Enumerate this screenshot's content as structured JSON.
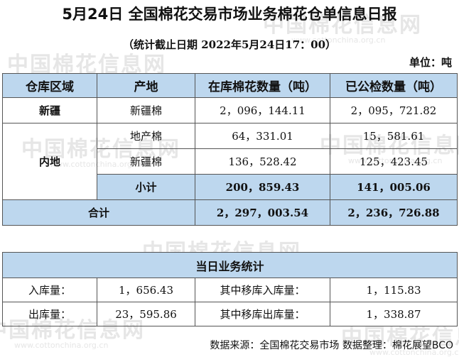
{
  "title": "5月24日 全国棉花交易市场业务棉花仓单信息日报",
  "subtitle": "（统计截止日期 2022年5月24日17：00）",
  "unit": "单位：吨",
  "watermark": {
    "brand": "中国棉花信息网",
    "url": "www.cottonchina.org.cn"
  },
  "table": {
    "headers": [
      "仓库区域",
      "产地",
      "在库棉花数量（吨）",
      "已公检数量（吨）"
    ],
    "xinjiang": {
      "region": "新疆",
      "origin": "新疆棉",
      "stock": "2，096，144.11",
      "inspected": "2，095，721.82"
    },
    "inland": {
      "region": "内地",
      "rows": [
        {
          "origin": "地产棉",
          "stock": "64，331.01",
          "inspected": "15，581.61"
        },
        {
          "origin": "新疆棉",
          "stock": "136，528.42",
          "inspected": "125，423.45"
        }
      ],
      "subtotal_label": "小计",
      "subtotal_stock": "200，859.43",
      "subtotal_inspected": "141，005.06"
    },
    "total": {
      "label": "合计",
      "stock": "2，297，003.54",
      "inspected": "2，236，726.88"
    }
  },
  "daily": {
    "title": "当日业务统计",
    "rows": [
      {
        "label": "入库量：",
        "value": "1，656.43",
        "sub_label": "其中移库入库量：",
        "sub_value": "1，115.83"
      },
      {
        "label": "出库量：",
        "value": "23，595.86",
        "sub_label": "其中移库出库量：",
        "sub_value": "1，338.87"
      }
    ]
  },
  "footer": "数据来源：全国棉花交易市场 数据整理：棉花展望BCO"
}
